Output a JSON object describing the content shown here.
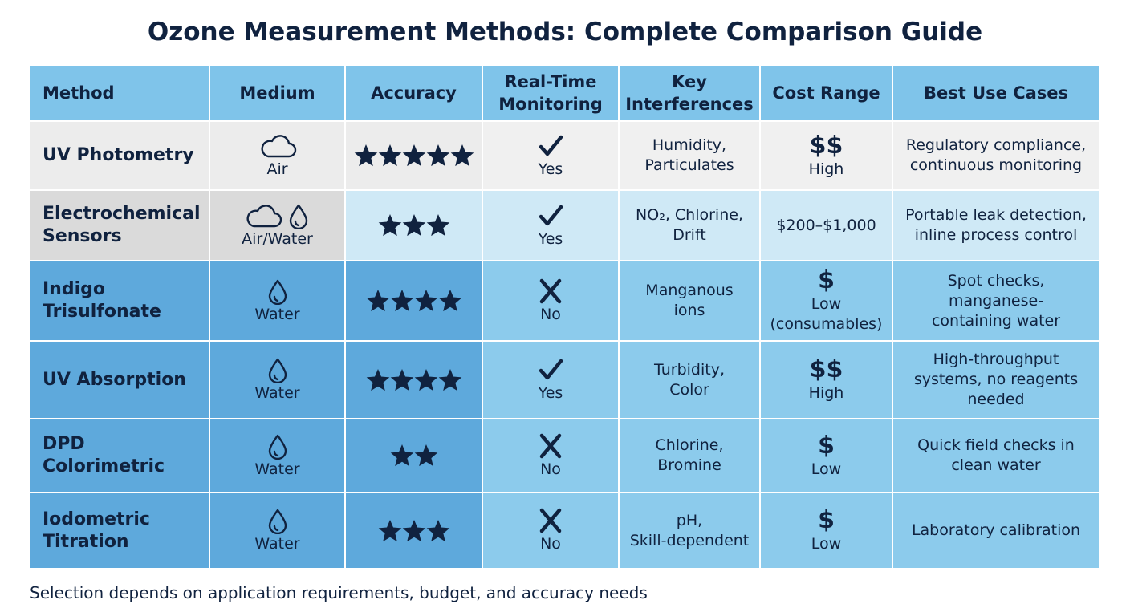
{
  "header": {
    "title": "Ozone Measurement Methods: Complete Comparison Guide"
  },
  "table": {
    "columns": [
      [
        "Method"
      ],
      [
        "Medium"
      ],
      [
        "Accuracy"
      ],
      [
        "Real-Time",
        "Monitoring"
      ],
      [
        "Key",
        "Interferences"
      ],
      [
        "Cost Range"
      ],
      [
        "Best Use Cases"
      ]
    ],
    "rows": [
      {
        "method": [
          "UV Photometry"
        ],
        "medium": "Air",
        "accuracy": 5,
        "realtime": "Yes",
        "interferences": [
          "Humidity,",
          "Particulates"
        ],
        "cost": [
          "$$",
          "High"
        ],
        "uses": [
          "Regulatory compliance,",
          "continuous monitoring"
        ]
      },
      {
        "method": [
          "Electrochemical",
          "Sensors"
        ],
        "medium": "Air/Water",
        "accuracy": 3,
        "realtime": "Yes",
        "interferences": [
          "NO₂, Chlorine,",
          "Drift"
        ],
        "cost": [
          "$200–$1,000"
        ],
        "uses": [
          "Portable leak detection,",
          "inline process control"
        ]
      },
      {
        "method": [
          "Indigo",
          "Trisulfonate"
        ],
        "medium": "Water",
        "accuracy": 4,
        "realtime": "No",
        "interferences": [
          "Manganous",
          "ions"
        ],
        "cost": [
          "$",
          "Low",
          "(consumables)"
        ],
        "uses": [
          "Spot checks,",
          "manganese-",
          "containing water"
        ]
      },
      {
        "method": [
          "UV Absorption"
        ],
        "medium": "Water",
        "accuracy": 4,
        "realtime": "Yes",
        "interferences": [
          "Turbidity,",
          "Color"
        ],
        "cost": [
          "$$",
          "High"
        ],
        "uses": [
          "High-throughput",
          "systems, no reagents",
          "needed"
        ]
      },
      {
        "method": [
          "DPD",
          "Colorimetric"
        ],
        "medium": "Water",
        "accuracy": 2,
        "realtime": "No",
        "interferences": [
          "Chlorine,",
          "Bromine"
        ],
        "cost": [
          "$",
          "Low"
        ],
        "uses": [
          "Quick field checks in",
          "clean water"
        ]
      },
      {
        "method": [
          "Iodometric",
          "Titration"
        ],
        "medium": "Water",
        "accuracy": 3,
        "realtime": "No",
        "interferences": [
          "pH,",
          "Skill-dependent"
        ],
        "cost": [
          "$",
          "Low"
        ],
        "uses": [
          "Laboratory calibration"
        ]
      }
    ]
  },
  "footnote": "Selection depends on application requirements, budget, and accuracy needs"
}
